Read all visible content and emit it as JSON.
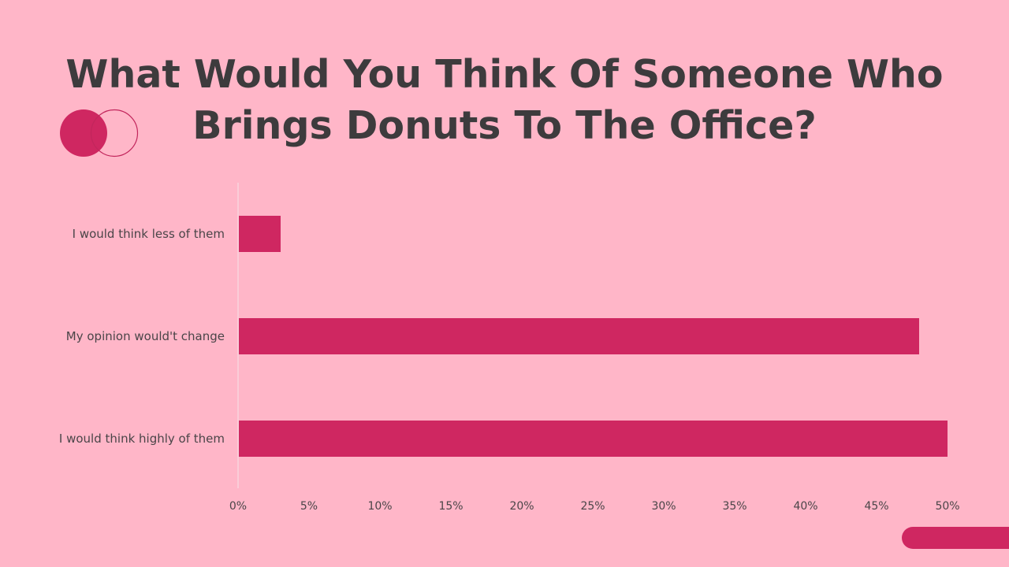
{
  "title_lines": [
    "What Would You Think Of Someone Who",
    "Brings Donuts To The Office?"
  ],
  "colors": {
    "background": "#FFB6C8",
    "bar": "#CF2761",
    "title": "#3D3B3D",
    "text": "#4A4548"
  },
  "chart_data": {
    "type": "bar",
    "orientation": "horizontal",
    "title": "What Would You Think Of Someone Who Brings Donuts To The Office?",
    "categories": [
      "I would think less of them",
      "My opinion would't change",
      "I would think highly of them"
    ],
    "values": [
      3,
      48,
      50
    ],
    "xlim": [
      0,
      50
    ],
    "xticks": [
      "0%",
      "5%",
      "10%",
      "15%",
      "20%",
      "25%",
      "30%",
      "35%",
      "40%",
      "45%",
      "50%"
    ],
    "xlabel": "",
    "ylabel": "",
    "grid": false,
    "legend": "none"
  }
}
